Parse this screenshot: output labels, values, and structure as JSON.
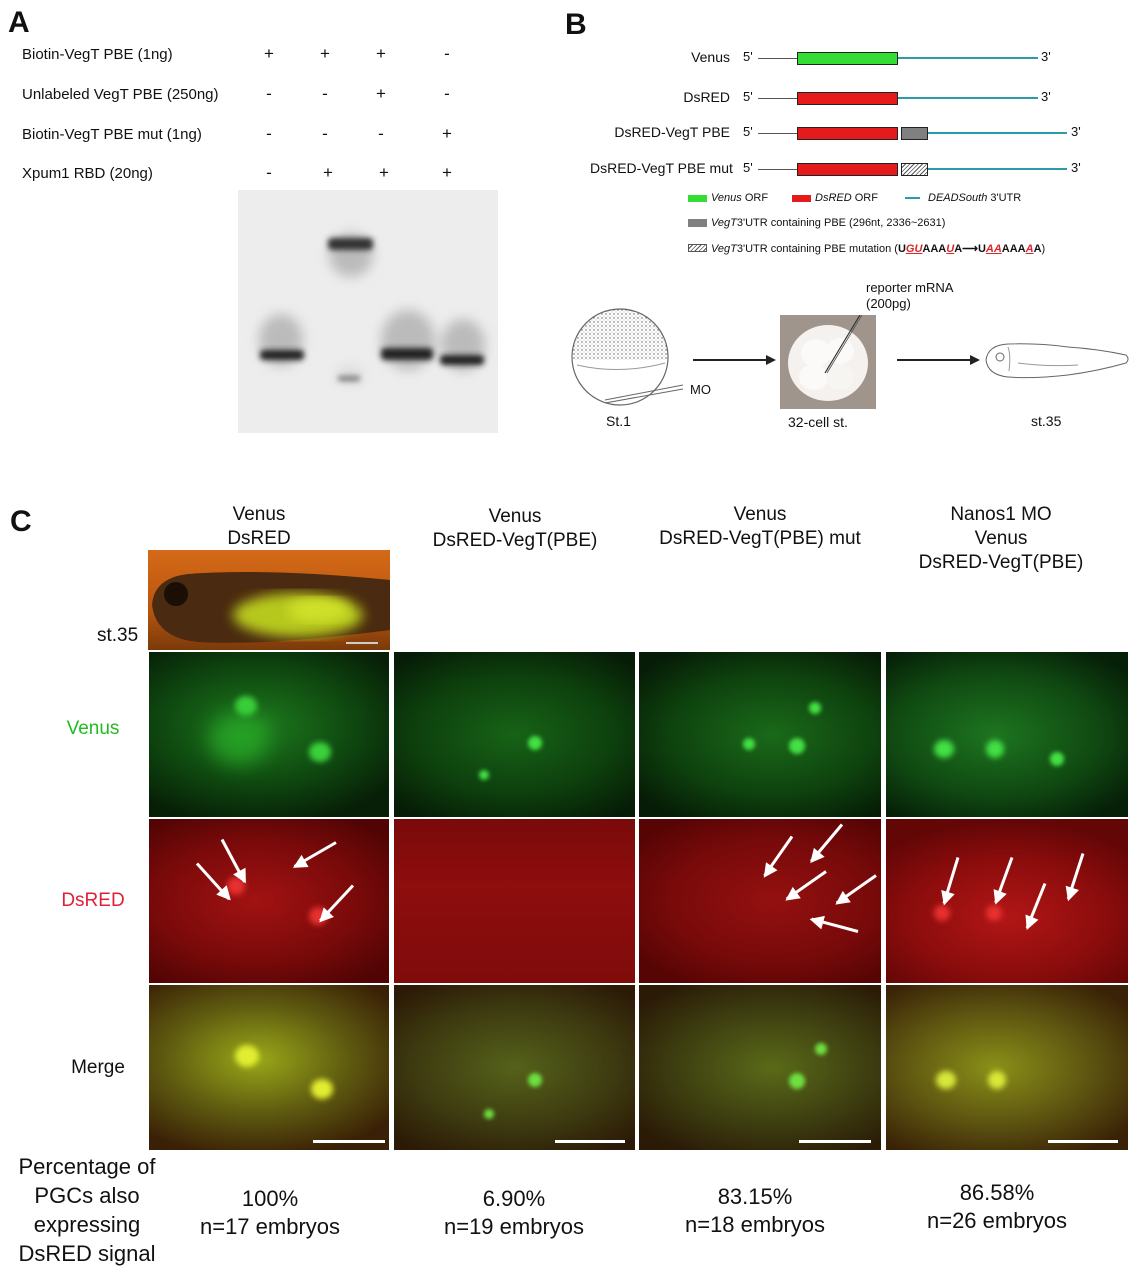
{
  "panelA": {
    "letter": "A",
    "rows": [
      {
        "label": "Biotin-VegT PBE (1ng)",
        "signs": [
          "+",
          "+",
          "+",
          "-"
        ]
      },
      {
        "label": "Unlabeled VegT PBE (250ng)",
        "signs": [
          "-",
          "-",
          "+",
          "-"
        ]
      },
      {
        "label": "Biotin-VegT PBE mut (1ng)",
        "signs": [
          "-",
          "-",
          "-",
          "+"
        ]
      },
      {
        "label": "Xpum1 RBD (20ng)",
        "signs": [
          "-",
          "+",
          "+",
          "+"
        ]
      }
    ]
  },
  "panelB": {
    "letter": "B",
    "constructs": [
      {
        "label": "Venus",
        "five": "5'",
        "three": "3'"
      },
      {
        "label": "DsRED",
        "five": "5'",
        "three": "3'"
      },
      {
        "label": "DsRED-VegT PBE",
        "five": "5'",
        "three": "3'"
      },
      {
        "label": "DsRED-VegT PBE mut",
        "five": "5'",
        "three": "3'"
      }
    ],
    "legend": {
      "venus_orf": "Venus",
      "orf": "ORF",
      "dsred_orf": "DsRED",
      "deadsouth": "DEADSouth",
      "utr": "3'UTR",
      "vegt": "VegT",
      "pbe_text": "3'UTR containing PBE  (296nt, 2336~2631)",
      "mut_text_a": "3'UTR containing PBE mutation (",
      "seq_wt_parts": [
        "U",
        "GU",
        "AAA",
        "U",
        "A"
      ],
      "seq_mut_parts": [
        "U",
        "AA",
        "AAA",
        "A",
        "A"
      ],
      "close": ")"
    },
    "diagram": {
      "mrna": "reporter mRNA",
      "amount": "(200pg)",
      "mo": "MO",
      "st1": "St.1",
      "cell32": "32-cell st.",
      "st35": "st.35"
    }
  },
  "panelC": {
    "letter": "C",
    "columns": [
      {
        "lines": [
          "Venus",
          "DsRED"
        ]
      },
      {
        "lines": [
          "Venus",
          "DsRED-VegT(PBE)"
        ]
      },
      {
        "lines": [
          "Venus",
          "DsRED-VegT(PBE) mut"
        ]
      },
      {
        "lines": [
          "Nanos1 MO",
          "Venus",
          "DsRED-VegT(PBE)"
        ]
      }
    ],
    "stage_label": "st.35",
    "row_labels": {
      "venus": "Venus",
      "dsred": "DsRED",
      "merge": "Merge"
    },
    "row_colors": {
      "venus": "#22bb22",
      "dsred": "#e0203a",
      "merge": "#111111"
    },
    "footer_label": [
      "Percentage of",
      "PGCs also",
      "expressing",
      "DsRED signal"
    ],
    "results": [
      {
        "percent": "100%",
        "n": "n=17 embryos"
      },
      {
        "percent": "6.90%",
        "n": "n=19 embryos"
      },
      {
        "percent": "83.15%",
        "n": "n=18 embryos"
      },
      {
        "percent": "86.58%",
        "n": "n=26 embryos"
      }
    ]
  },
  "colors": {
    "venus_green": "#33dd33",
    "dsred_red": "#e51b1b",
    "utr_teal": "#2a9ca8",
    "mutation_red": "#d9262c"
  }
}
